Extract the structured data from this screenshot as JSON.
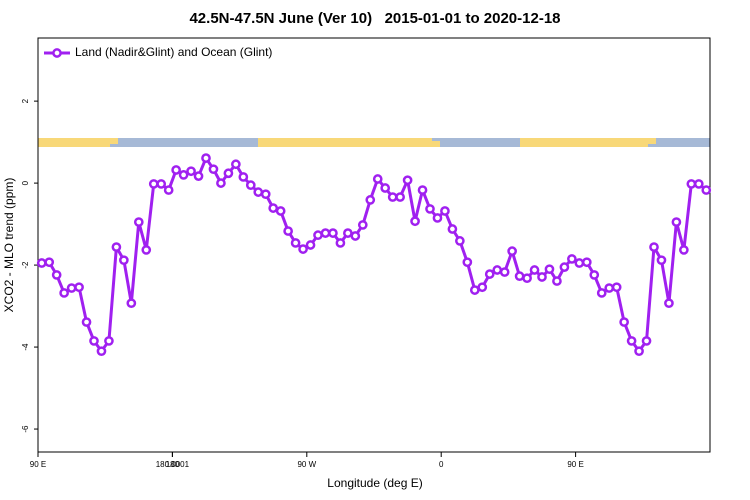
{
  "chart_data": {
    "type": "line",
    "title": "42.5N-47.5N June (Ver 10)   2015-01-01 to 2020-12-18",
    "x_label": "Longitude (deg E)",
    "y_label": "XCO2 - MLO trend (ppm)",
    "x": [
      92.5,
      97.5,
      102.5,
      107.5,
      112.5,
      117.5,
      122.5,
      127.5,
      132.5,
      137.5,
      142.5,
      147.5,
      152.5,
      157.5,
      162.5,
      167.5,
      172.5,
      177.5,
      182.5,
      187.5,
      192.5,
      197.5,
      202.5,
      207.5,
      212.5,
      217.5,
      222.5,
      227.5,
      232.5,
      237.5,
      242.5,
      247.5,
      252.5,
      257.5,
      262.5,
      267.5,
      272.5,
      277.5,
      282.5,
      287.5,
      292.5,
      297.5,
      302.5,
      307.5,
      312.5,
      317.5,
      322.5,
      327.5,
      332.5,
      337.5,
      342.5,
      347.5,
      352.5,
      357.5,
      362.5,
      367.5,
      372.5,
      377.5,
      382.5,
      387.5,
      392.5,
      397.5,
      402.5,
      407.5,
      412.5,
      417.5,
      422.5,
      427.5,
      432.5,
      437.5,
      442.5,
      447.5,
      452.5,
      457.5,
      462.5,
      467.5,
      472.5,
      477.5,
      482.5,
      487.5,
      492.5,
      497.5,
      502.5,
      507.5,
      512.5,
      517.5,
      522.5,
      527.5,
      532.5,
      537.5
    ],
    "series": [
      {
        "name": "Land (Nadir&Glint) and Ocean (Glint)",
        "color": "#a020f0",
        "values": [
          -1.95,
          -1.93,
          -2.24,
          -2.68,
          -2.56,
          -2.54,
          -3.39,
          -3.85,
          -4.1,
          -3.85,
          -1.56,
          -1.88,
          -2.93,
          -0.95,
          -1.63,
          -0.02,
          -0.02,
          -0.17,
          0.32,
          0.2,
          0.29,
          0.17,
          0.61,
          0.34,
          0.0,
          0.24,
          0.46,
          0.15,
          -0.05,
          -0.22,
          -0.27,
          -0.61,
          -0.68,
          -1.17,
          -1.46,
          -1.61,
          -1.51,
          -1.27,
          -1.22,
          -1.22,
          -1.46,
          -1.22,
          -1.29,
          -1.02,
          -0.41,
          0.1,
          -0.12,
          -0.34,
          -0.34,
          0.07,
          -0.93,
          -0.17,
          -0.63,
          -0.85,
          -0.68,
          -1.12,
          -1.41,
          -1.93,
          -2.61,
          -2.54,
          -2.22,
          -2.12,
          -2.17,
          -1.66,
          -2.27,
          -2.32,
          -2.12,
          -2.29,
          -2.1,
          -2.39,
          -2.05,
          -1.85,
          -1.95,
          -1.93,
          -2.24,
          -2.68,
          -2.56,
          -2.54,
          -3.39,
          -3.85,
          -4.1,
          -3.85,
          -1.56,
          -1.88,
          -2.93,
          -0.95,
          -1.63,
          -0.02,
          -0.02,
          -0.17
        ]
      }
    ],
    "xlim": [
      90,
      540
    ],
    "xticks": [
      {
        "value": 90,
        "label": "90 E"
      },
      180,
      {
        "value": 270,
        "label": "90 W"
      },
      {
        "value": 360,
        "label": "0"
      },
      {
        "value": 450,
        "label": "90 E"
      },
      180.0001
    ],
    "ylim": [
      -6.56,
      3.54
    ],
    "yticks": [
      -6,
      -4,
      -2,
      0,
      2
    ],
    "legend": "top-left"
  }
}
